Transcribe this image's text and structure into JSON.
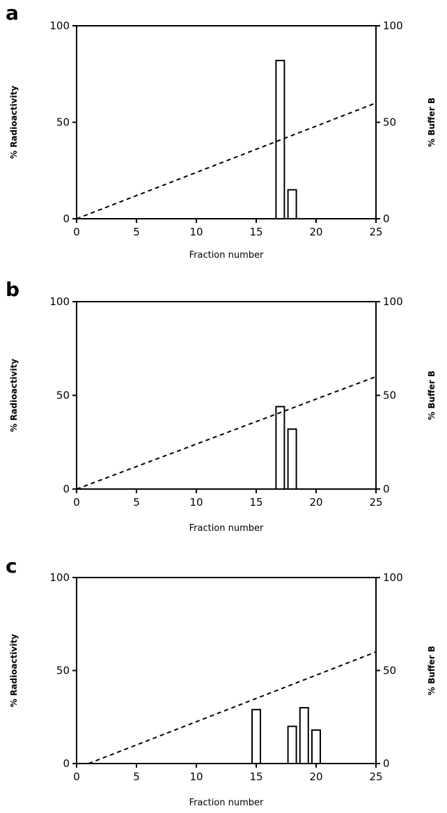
{
  "chart_data": [
    {
      "type": "bar",
      "panel_label": "a",
      "xlabel": "Fraction number",
      "ylabel": "% Radioactivity",
      "y2label": "% Buffer B",
      "xlim": [
        0,
        25
      ],
      "ylim": [
        0,
        100
      ],
      "y2lim": [
        0,
        100
      ],
      "x_ticks": [
        0,
        5,
        10,
        15,
        20,
        25
      ],
      "y_ticks": [
        0,
        50,
        100
      ],
      "y2_ticks": [
        0,
        50,
        100
      ],
      "bars": {
        "x": [
          17,
          18
        ],
        "values": [
          82,
          15
        ]
      },
      "gradient": {
        "style": "dashed",
        "axis": "right",
        "x": [
          0,
          25
        ],
        "y": [
          0,
          60
        ]
      }
    },
    {
      "type": "bar",
      "panel_label": "b",
      "xlabel": "Fraction number",
      "ylabel": "% Radioactivity",
      "y2label": "% Buffer B",
      "xlim": [
        0,
        25
      ],
      "ylim": [
        0,
        100
      ],
      "y2lim": [
        0,
        100
      ],
      "x_ticks": [
        0,
        5,
        10,
        15,
        20,
        25
      ],
      "y_ticks": [
        0,
        50,
        100
      ],
      "y2_ticks": [
        0,
        50,
        100
      ],
      "bars": {
        "x": [
          17,
          18
        ],
        "values": [
          44,
          32
        ]
      },
      "gradient": {
        "style": "dashed",
        "axis": "right",
        "x": [
          0,
          25
        ],
        "y": [
          0,
          60
        ]
      }
    },
    {
      "type": "bar",
      "panel_label": "c",
      "xlabel": "Fraction number",
      "ylabel": "% Radioactivity",
      "y2label": "% Buffer B",
      "xlim": [
        0,
        25
      ],
      "ylim": [
        0,
        100
      ],
      "y2lim": [
        0,
        100
      ],
      "x_ticks": [
        0,
        5,
        10,
        15,
        20,
        25
      ],
      "y_ticks": [
        0,
        50,
        100
      ],
      "y2_ticks": [
        0,
        50,
        100
      ],
      "bars": {
        "x": [
          15,
          18,
          19,
          20
        ],
        "values": [
          29,
          20,
          30,
          18
        ]
      },
      "gradient": {
        "style": "dashed",
        "axis": "right",
        "x": [
          1,
          25
        ],
        "y": [
          0,
          60
        ]
      }
    }
  ]
}
